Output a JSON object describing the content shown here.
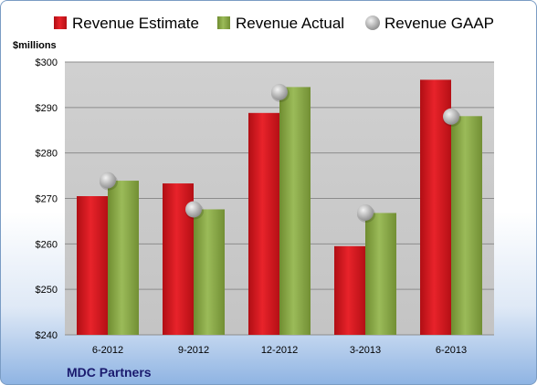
{
  "chart_data": {
    "type": "bar",
    "categories": [
      "6-2012",
      "9-2012",
      "12-2012",
      "3-2013",
      "6-2013"
    ],
    "series": [
      {
        "name": "Revenue Estimate",
        "kind": "bar",
        "color": "#d9141b",
        "values": [
          270.5,
          273.3,
          288.8,
          259.5,
          296.1
        ]
      },
      {
        "name": "Revenue Actual",
        "kind": "bar",
        "color": "#8fae4a",
        "values": [
          273.9,
          267.6,
          294.5,
          266.8,
          288.1
        ]
      },
      {
        "name": "Revenue GAAP",
        "kind": "marker",
        "color": "#b8b8b8",
        "values": [
          274.0,
          267.6,
          293.4,
          266.9,
          288.0
        ]
      }
    ],
    "ylabel": "$millions",
    "ylim": [
      240,
      300
    ],
    "yticks": [
      "$240",
      "$250",
      "$260",
      "$270",
      "$280",
      "$290",
      "$300"
    ],
    "grid": true,
    "legend": "top",
    "footer": "MDC Partners"
  }
}
